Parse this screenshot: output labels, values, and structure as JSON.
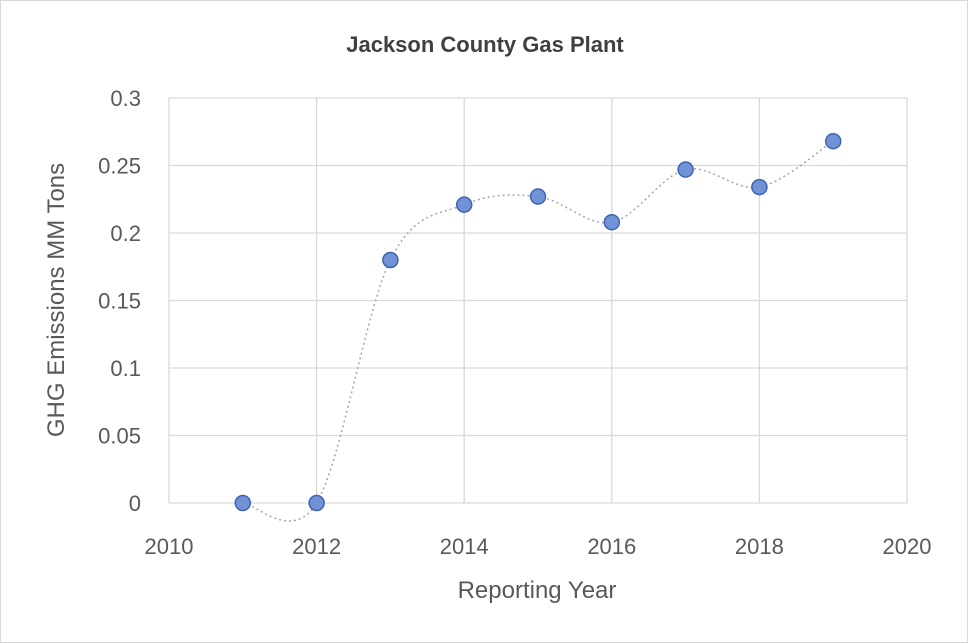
{
  "chart_data": {
    "type": "scatter",
    "title": "Jackson County Gas Plant",
    "xlabel": "Reporting Year",
    "ylabel": "GHG Emissions MM Tons",
    "xlim": [
      2010,
      2020
    ],
    "ylim": [
      0,
      0.3
    ],
    "xticks": [
      "2010",
      "2012",
      "2014",
      "2016",
      "2018",
      "2020"
    ],
    "yticks": [
      "0",
      "0.05",
      "0.1",
      "0.15",
      "0.2",
      "0.25",
      "0.3"
    ],
    "grid": true,
    "smoothed_line": true,
    "line_style": "dotted",
    "colors": {
      "marker_fill": "#7193d6",
      "marker_stroke": "#3f63b4",
      "line": "#a6a6a6",
      "grid": "#d9d9d9"
    },
    "series": [
      {
        "x": [
          2011,
          2012,
          2013,
          2014,
          2015,
          2016,
          2017,
          2018,
          2019
        ],
        "y": [
          0,
          0,
          0.18,
          0.221,
          0.227,
          0.208,
          0.247,
          0.234,
          0.268
        ]
      }
    ]
  }
}
